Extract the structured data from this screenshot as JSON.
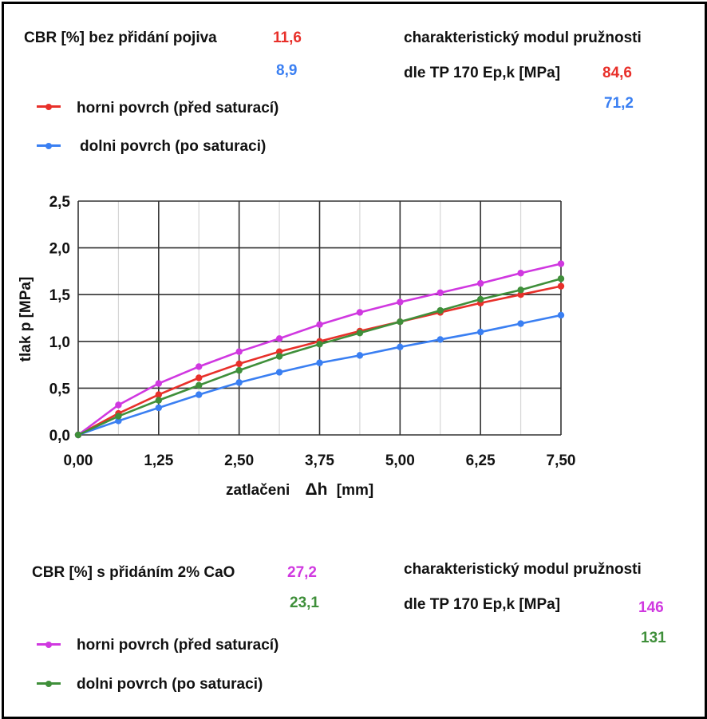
{
  "top": {
    "cbr_label": "CBR [%] bez přidání pojiva",
    "cbr_top_value": "11,6",
    "cbr_bottom_value": "8,9",
    "modul_label_line1": "charakteristický modul pružnosti",
    "modul_label_line2": "dle TP 170 Ep,k [MPa]",
    "modul_top_value": "84,6",
    "modul_bottom_value": "71,2",
    "legend": [
      {
        "label": "horni povrch (před saturací)",
        "color": "#e8302a"
      },
      {
        "label": "dolni povrch (po saturaci)",
        "color": "#3a7ff2"
      }
    ]
  },
  "bottom": {
    "cbr_label": "CBR [%] s přidáním 2% CaO",
    "cbr_top_value": "27,2",
    "cbr_bottom_value": "23,1",
    "modul_label_line1": "charakteristický modul pružnosti",
    "modul_label_line2": "dle TP 170 Ep,k [MPa]",
    "modul_top_value": "146",
    "modul_bottom_value": "131",
    "legend": [
      {
        "label": "horni povrch (před saturací)",
        "color": "#d038e0"
      },
      {
        "label": "dolni povrch (po saturaci)",
        "color": "#3f8f3a"
      }
    ]
  },
  "chart_data": {
    "type": "line",
    "xlabel_prefix": "zatlačeni",
    "xlabel_symbol": "Δh",
    "xlabel_unit": "[mm]",
    "ylabel": "tlak p [MPa]",
    "xlim": [
      0,
      7.5
    ],
    "ylim": [
      0,
      2.5
    ],
    "x_ticks": [
      "0,00",
      "1,25",
      "2,50",
      "3,75",
      "5,00",
      "6,25",
      "7,50"
    ],
    "y_ticks": [
      "0,0",
      "0,5",
      "1,0",
      "1,5",
      "2,0",
      "2,5"
    ],
    "grid": true,
    "x": [
      0,
      0.625,
      1.25,
      1.875,
      2.5,
      3.125,
      3.75,
      4.375,
      5.0,
      5.625,
      6.25,
      6.875,
      7.5
    ],
    "series": [
      {
        "color": "#e8302a",
        "values": [
          0,
          0.23,
          0.43,
          0.61,
          0.76,
          0.89,
          1.0,
          1.11,
          1.21,
          1.31,
          1.41,
          1.5,
          1.59
        ]
      },
      {
        "color": "#3a7ff2",
        "values": [
          0,
          0.15,
          0.29,
          0.43,
          0.56,
          0.67,
          0.77,
          0.85,
          0.94,
          1.02,
          1.1,
          1.19,
          1.28
        ]
      },
      {
        "color": "#d038e0",
        "values": [
          0,
          0.32,
          0.55,
          0.73,
          0.89,
          1.03,
          1.18,
          1.31,
          1.42,
          1.52,
          1.62,
          1.73,
          1.83
        ]
      },
      {
        "color": "#3f8f3a",
        "values": [
          0,
          0.2,
          0.37,
          0.53,
          0.69,
          0.84,
          0.97,
          1.09,
          1.21,
          1.33,
          1.45,
          1.55,
          1.67
        ]
      }
    ]
  }
}
